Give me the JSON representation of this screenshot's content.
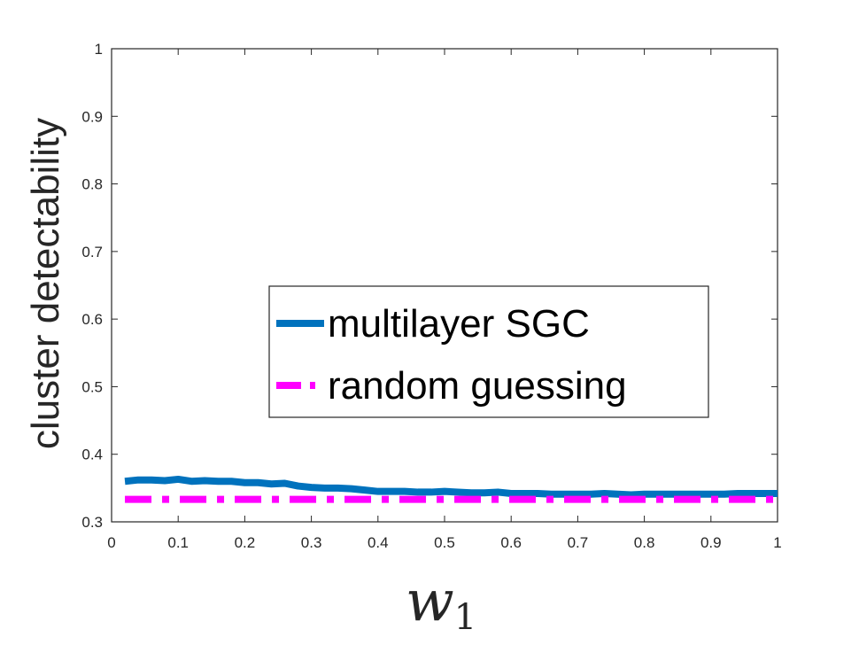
{
  "chart_data": {
    "type": "line",
    "title": "",
    "xlabel": "w",
    "xlabel_subscript": "1",
    "ylabel": "cluster detectability",
    "xlim": [
      0,
      1
    ],
    "ylim": [
      0.3,
      1
    ],
    "xticks": [
      "0",
      "0.1",
      "0.2",
      "0.3",
      "0.4",
      "0.5",
      "0.6",
      "0.7",
      "0.8",
      "0.9",
      "1"
    ],
    "yticks": [
      "0.3",
      "0.4",
      "0.5",
      "0.6",
      "0.7",
      "0.8",
      "0.9",
      "1"
    ],
    "grid": false,
    "legend_position": "center-right",
    "series": [
      {
        "name": "multilayer SGC",
        "color": "#0072BD",
        "style": "solid",
        "x": [
          0.02,
          0.04,
          0.06,
          0.08,
          0.1,
          0.12,
          0.14,
          0.16,
          0.18,
          0.2,
          0.22,
          0.24,
          0.26,
          0.28,
          0.3,
          0.32,
          0.34,
          0.36,
          0.38,
          0.4,
          0.42,
          0.44,
          0.46,
          0.48,
          0.5,
          0.52,
          0.54,
          0.56,
          0.58,
          0.6,
          0.62,
          0.64,
          0.66,
          0.68,
          0.7,
          0.72,
          0.74,
          0.76,
          0.78,
          0.8,
          0.82,
          0.84,
          0.86,
          0.88,
          0.9,
          0.92,
          0.94,
          0.96,
          0.98,
          1.0
        ],
        "values": [
          0.36,
          0.362,
          0.362,
          0.361,
          0.363,
          0.36,
          0.361,
          0.36,
          0.36,
          0.358,
          0.358,
          0.356,
          0.357,
          0.353,
          0.351,
          0.35,
          0.35,
          0.349,
          0.347,
          0.345,
          0.345,
          0.345,
          0.344,
          0.344,
          0.345,
          0.344,
          0.343,
          0.343,
          0.344,
          0.342,
          0.342,
          0.342,
          0.341,
          0.341,
          0.341,
          0.341,
          0.342,
          0.341,
          0.34,
          0.341,
          0.341,
          0.341,
          0.341,
          0.341,
          0.341,
          0.341,
          0.342,
          0.342,
          0.342,
          0.342
        ]
      },
      {
        "name": "random guessing",
        "color": "#FF00FF",
        "style": "dash-dot",
        "x": [
          0.02,
          1.0
        ],
        "values": [
          0.3333,
          0.3333
        ]
      }
    ]
  }
}
